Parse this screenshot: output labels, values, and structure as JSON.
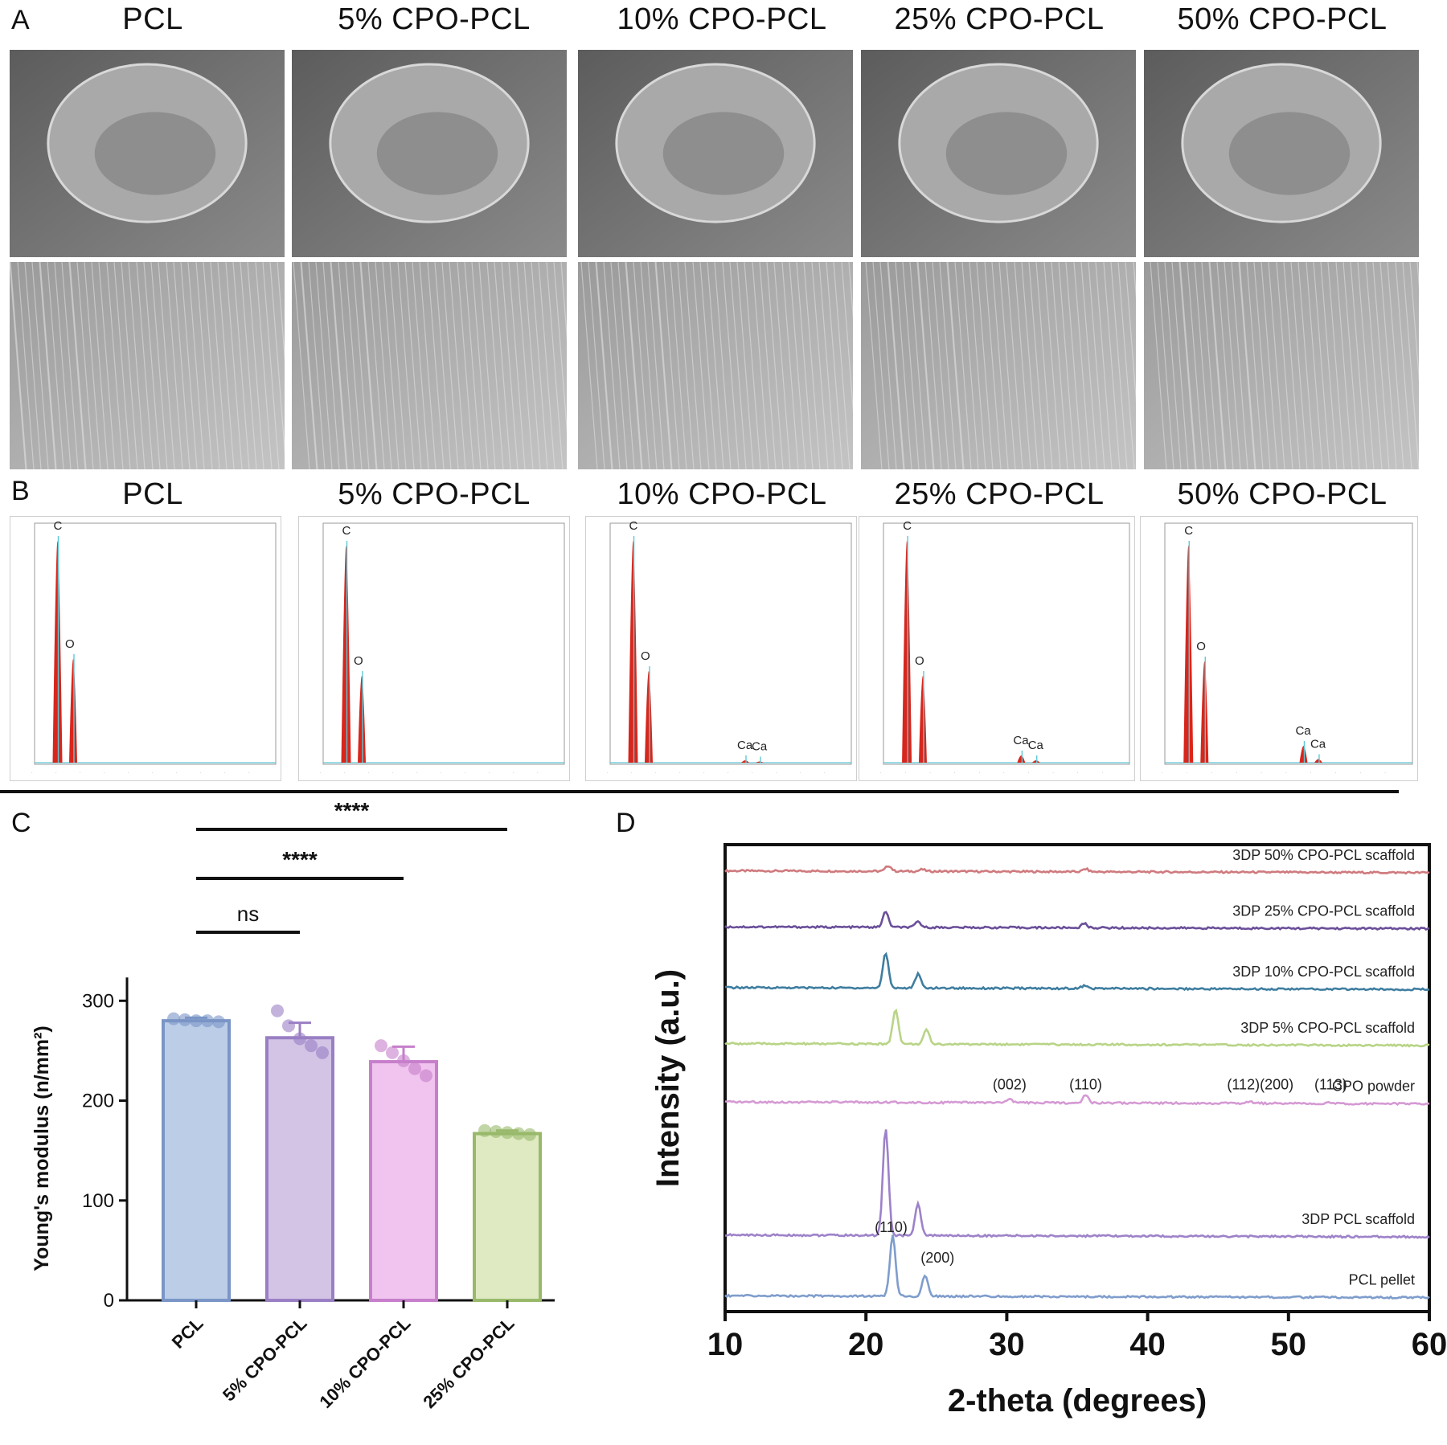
{
  "panels": {
    "A": "A",
    "B": "B",
    "C": "C",
    "D": "D"
  },
  "sem_titles": [
    "PCL",
    "5% CPO-PCL",
    "10% CPO-PCL",
    "25% CPO-PCL",
    "50% CPO-PCL"
  ],
  "eds_titles": [
    "PCL",
    "5% CPO-PCL",
    "10% CPO-PCL",
    "25% CPO-PCL",
    "50% CPO-PCL"
  ],
  "eds_spectra": [
    {
      "labels": [
        {
          "text": "C",
          "peak": "C"
        },
        {
          "text": "O",
          "peak": "O"
        }
      ],
      "peaks": {
        "C": 0.92,
        "O": 0.43
      },
      "ca": []
    },
    {
      "labels": [
        {
          "text": "C",
          "peak": "C"
        },
        {
          "text": "O",
          "peak": "O"
        }
      ],
      "peaks": {
        "C": 0.9,
        "O": 0.36
      },
      "ca": []
    },
    {
      "labels": [
        {
          "text": "C",
          "peak": "C"
        },
        {
          "text": "O",
          "peak": "O"
        },
        {
          "text": "Ca",
          "peak": "Ca1"
        },
        {
          "text": "Ca",
          "peak": "Ca2"
        }
      ],
      "peaks": {
        "C": 0.92,
        "O": 0.38,
        "Ca1": 0.01,
        "Ca2": 0.005
      },
      "ca": [
        "Ca1",
        "Ca2"
      ]
    },
    {
      "labels": [
        {
          "text": "C",
          "peak": "C"
        },
        {
          "text": "O",
          "peak": "O"
        },
        {
          "text": "Ca",
          "peak": "Ca1"
        },
        {
          "text": "Ca",
          "peak": "Ca2"
        }
      ],
      "peaks": {
        "C": 0.92,
        "O": 0.36,
        "Ca1": 0.03,
        "Ca2": 0.01
      },
      "ca": [
        "Ca1",
        "Ca2"
      ]
    },
    {
      "labels": [
        {
          "text": "C",
          "peak": "C"
        },
        {
          "text": "O",
          "peak": "O"
        },
        {
          "text": "Ca",
          "peak": "Ca1"
        },
        {
          "text": "Ca",
          "peak": "Ca2"
        }
      ],
      "peaks": {
        "C": 0.9,
        "O": 0.42,
        "Ca1": 0.07,
        "Ca2": 0.015
      },
      "ca": [
        "Ca1",
        "Ca2"
      ]
    }
  ],
  "colors": {
    "eds_peak": "#d8261c",
    "eds_line": "#5ec8d6",
    "bar_pcl": "#bccde8",
    "bar_pcl_edge": "#7a95c6",
    "bar_5": "#d3c4e6",
    "bar_5_edge": "#9a7fc4",
    "bar_10": "#f0c4ee",
    "bar_10_edge": "#c77fcb",
    "bar_25": "#dfeac2",
    "bar_25_edge": "#98b96a"
  },
  "chart_data": [
    {
      "type": "bar",
      "categories": [
        "PCL",
        "5% CPO-PCL",
        "10% CPO-PCL",
        "25% CPO-PCL"
      ],
      "values": [
        280,
        263,
        239,
        167
      ],
      "errors": [
        3,
        15,
        15,
        3
      ],
      "points": [
        [
          282,
          281,
          280,
          280,
          279
        ],
        [
          290,
          275,
          262,
          255,
          248
        ],
        [
          255,
          248,
          240,
          232,
          225
        ],
        [
          170,
          169,
          168,
          167,
          166
        ]
      ],
      "ylabel": "Young's modulus (n/mm2)",
      "yticks": [
        0,
        100,
        200,
        300
      ],
      "ylim": [
        0,
        330
      ],
      "significance": [
        {
          "from": "PCL",
          "to": "5% CPO-PCL",
          "label": "ns"
        },
        {
          "from": "PCL",
          "to": "10% CPO-PCL",
          "label": "****"
        },
        {
          "from": "PCL",
          "to": "25% CPO-PCL",
          "label": "****"
        }
      ]
    },
    {
      "type": "line",
      "xlabel": "2-theta (degrees)",
      "ylabel": "Intensity (a.u.)",
      "xlim": [
        10,
        60
      ],
      "xticks": [
        10,
        20,
        30,
        40,
        50,
        60
      ],
      "series": [
        {
          "name": "3DP 50% CPO-PCL scaffold",
          "color": "#cf7a7e",
          "offset": 0.94,
          "peaks": [
            [
              21.6,
              0.012
            ],
            [
              24.0,
              0.004
            ],
            [
              35.6,
              0.006
            ]
          ]
        },
        {
          "name": "3DP 25% CPO-PCL scaffold",
          "color": "#6a4f99",
          "offset": 0.82,
          "peaks": [
            [
              21.4,
              0.033
            ],
            [
              23.7,
              0.012
            ],
            [
              35.5,
              0.009
            ]
          ]
        },
        {
          "name": "3DP 10% CPO-PCL scaffold",
          "color": "#3f7ea0",
          "offset": 0.69,
          "peaks": [
            [
              21.4,
              0.075
            ],
            [
              23.7,
              0.03
            ],
            [
              35.5,
              0.006
            ]
          ]
        },
        {
          "name": "3DP 5% CPO-PCL scaffold",
          "color": "#b8d486",
          "offset": 0.57,
          "peaks": [
            [
              22.1,
              0.075
            ],
            [
              24.3,
              0.03
            ]
          ]
        },
        {
          "name": "CPO powder",
          "color": "#d59ad4",
          "offset": 0.445,
          "peaks": [
            [
              30.2,
              0.007
            ],
            [
              35.6,
              0.017
            ],
            [
              47.3,
              0.004
            ],
            [
              53.0,
              0.002
            ]
          ]
        },
        {
          "name": "3DP PCL scaffold",
          "color": "#9d82c9",
          "offset": 0.16,
          "peaks": [
            [
              21.4,
              0.23
            ],
            [
              23.7,
              0.07
            ]
          ]
        },
        {
          "name": "PCL pellet",
          "color": "#7f9dcc",
          "offset": 0.03,
          "peaks": [
            [
              21.9,
              0.13
            ],
            [
              24.2,
              0.045
            ]
          ]
        }
      ],
      "annotations": [
        {
          "text": "(002)",
          "x": 30.2,
          "series": "CPO powder"
        },
        {
          "text": "(110)",
          "x": 35.6,
          "series": "CPO powder"
        },
        {
          "text": "(112)(200)",
          "x": 48.0,
          "series": "CPO powder"
        },
        {
          "text": "(113)",
          "x": 53.0,
          "series": "CPO powder"
        },
        {
          "text": "(110)",
          "x": 21.9,
          "series": "PCL pellet"
        },
        {
          "text": "(200)",
          "x": 24.4,
          "series": "PCL pellet"
        }
      ]
    }
  ]
}
